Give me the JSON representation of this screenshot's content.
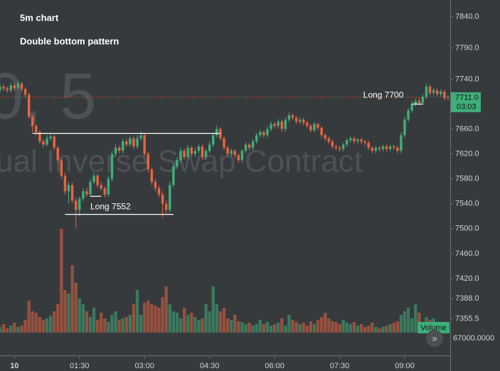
{
  "chart_data": {
    "type": "candlestick",
    "title": "5m chart",
    "subtitle": "Double bottom pattern",
    "watermark": [
      "0, 5",
      "ual Inverse Swap Contract"
    ],
    "x": [
      -20,
      -15,
      -10,
      -5,
      0,
      5,
      10,
      15,
      20,
      25,
      30,
      35,
      40,
      45,
      50,
      55,
      60,
      65,
      70,
      75,
      80,
      85,
      90,
      95,
      100,
      105,
      110,
      115,
      120,
      125,
      130,
      135,
      140,
      145,
      150,
      155,
      160,
      165,
      170,
      175,
      180,
      185,
      190,
      195,
      200,
      205,
      210,
      215,
      220,
      225,
      230,
      235,
      240,
      245,
      250,
      255,
      260,
      265,
      270,
      275,
      280,
      285,
      290,
      295,
      300,
      305,
      310,
      315,
      320,
      325,
      330,
      335,
      340,
      345,
      350,
      355,
      360,
      365,
      370,
      375,
      380,
      385,
      390,
      395,
      400,
      405,
      410,
      415,
      420,
      425,
      430,
      435,
      440,
      445,
      450,
      455,
      460,
      465,
      470,
      475,
      480,
      485,
      490,
      495,
      500,
      505,
      510,
      515,
      520,
      525,
      530,
      535,
      540,
      545,
      550,
      555,
      560,
      565,
      570,
      575,
      580,
      585,
      590,
      595,
      600
    ],
    "open": [
      7722,
      7728,
      7725,
      7722,
      7730,
      7726,
      7733,
      7724,
      7715,
      7680,
      7665,
      7655,
      7640,
      7635,
      7645,
      7648,
      7630,
      7610,
      7585,
      7560,
      7570,
      7545,
      7530,
      7548,
      7560,
      7555,
      7575,
      7585,
      7570,
      7565,
      7555,
      7580,
      7620,
      7630,
      7625,
      7640,
      7635,
      7645,
      7632,
      7645,
      7650,
      7620,
      7595,
      7575,
      7565,
      7555,
      7540,
      7530,
      7570,
      7600,
      7610,
      7625,
      7615,
      7630,
      7620,
      7625,
      7632,
      7615,
      7625,
      7635,
      7650,
      7660,
      7645,
      7630,
      7620,
      7625,
      7618,
      7610,
      7625,
      7635,
      7630,
      7640,
      7650,
      7655,
      7650,
      7660,
      7668,
      7665,
      7672,
      7660,
      7675,
      7682,
      7678,
      7672,
      7675,
      7670,
      7665,
      7658,
      7668,
      7662,
      7650,
      7645,
      7640,
      7632,
      7630,
      7628,
      7635,
      7642,
      7645,
      7640,
      7643,
      7640,
      7638,
      7630,
      7625,
      7630,
      7628,
      7632,
      7628,
      7632,
      7630,
      7625,
      7650,
      7675,
      7690,
      7700,
      7705,
      7702,
      7712,
      7728,
      7718,
      7722,
      7716,
      7720,
      7710
    ],
    "high": [
      7733,
      7732,
      7729,
      7735,
      7733,
      7738,
      7736,
      7727,
      7718,
      7683,
      7668,
      7658,
      7644,
      7650,
      7652,
      7651,
      7633,
      7614,
      7590,
      7575,
      7574,
      7550,
      7552,
      7565,
      7566,
      7580,
      7590,
      7588,
      7575,
      7568,
      7585,
      7625,
      7636,
      7634,
      7645,
      7644,
      7650,
      7648,
      7650,
      7656,
      7653,
      7624,
      7598,
      7580,
      7570,
      7560,
      7545,
      7575,
      7605,
      7615,
      7630,
      7629,
      7634,
      7633,
      7630,
      7636,
      7635,
      7629,
      7640,
      7654,
      7666,
      7663,
      7648,
      7633,
      7629,
      7628,
      7621,
      7628,
      7639,
      7638,
      7644,
      7654,
      7659,
      7658,
      7664,
      7672,
      7671,
      7676,
      7675,
      7679,
      7687,
      7685,
      7681,
      7679,
      7678,
      7673,
      7668,
      7671,
      7670,
      7665,
      7653,
      7648,
      7643,
      7635,
      7633,
      7638,
      7645,
      7648,
      7648,
      7646,
      7646,
      7643,
      7641,
      7633,
      7633,
      7633,
      7635,
      7635,
      7635,
      7635,
      7633,
      7655,
      7680,
      7694,
      7705,
      7709,
      7710,
      7716,
      7733,
      7731,
      7726,
      7725,
      7724,
      7723,
      7714
    ],
    "low": [
      7718,
      7721,
      7718,
      7719,
      7722,
      7723,
      7720,
      7711,
      7676,
      7655,
      7650,
      7636,
      7630,
      7632,
      7641,
      7626,
      7606,
      7580,
      7555,
      7540,
      7541,
      7500,
      7520,
      7544,
      7551,
      7551,
      7571,
      7566,
      7561,
      7550,
      7551,
      7576,
      7616,
      7621,
      7621,
      7631,
      7631,
      7628,
      7628,
      7641,
      7616,
      7590,
      7570,
      7560,
      7550,
      7518,
      7525,
      7526,
      7566,
      7596,
      7606,
      7611,
      7611,
      7616,
      7616,
      7621,
      7611,
      7611,
      7621,
      7631,
      7646,
      7641,
      7626,
      7616,
      7616,
      7614,
      7606,
      7606,
      7621,
      7626,
      7626,
      7636,
      7646,
      7646,
      7646,
      7656,
      7661,
      7661,
      7656,
      7656,
      7671,
      7674,
      7668,
      7668,
      7666,
      7661,
      7654,
      7654,
      7658,
      7646,
      7641,
      7636,
      7628,
      7626,
      7624,
      7624,
      7631,
      7638,
      7636,
      7636,
      7636,
      7634,
      7626,
      7621,
      7621,
      7624,
      7624,
      7624,
      7624,
      7626,
      7621,
      7621,
      7646,
      7671,
      7686,
      7696,
      7698,
      7698,
      7708,
      7714,
      7714,
      7712,
      7712,
      7706,
      7706
    ],
    "close": [
      7728,
      7725,
      7722,
      7730,
      7726,
      7733,
      7724,
      7715,
      7680,
      7665,
      7655,
      7640,
      7635,
      7645,
      7648,
      7630,
      7610,
      7585,
      7560,
      7570,
      7545,
      7530,
      7548,
      7560,
      7555,
      7575,
      7585,
      7570,
      7565,
      7555,
      7580,
      7620,
      7630,
      7625,
      7640,
      7635,
      7645,
      7632,
      7645,
      7650,
      7620,
      7595,
      7575,
      7565,
      7555,
      7540,
      7530,
      7570,
      7600,
      7610,
      7625,
      7615,
      7630,
      7620,
      7625,
      7632,
      7615,
      7625,
      7635,
      7650,
      7660,
      7645,
      7630,
      7620,
      7625,
      7618,
      7610,
      7625,
      7635,
      7630,
      7640,
      7650,
      7655,
      7650,
      7660,
      7668,
      7665,
      7672,
      7660,
      7675,
      7682,
      7678,
      7672,
      7675,
      7670,
      7665,
      7658,
      7668,
      7662,
      7650,
      7645,
      7640,
      7632,
      7630,
      7628,
      7635,
      7642,
      7645,
      7640,
      7643,
      7640,
      7638,
      7630,
      7625,
      7630,
      7628,
      7632,
      7628,
      7632,
      7630,
      7625,
      7650,
      7675,
      7690,
      7700,
      7705,
      7702,
      7712,
      7728,
      7718,
      7722,
      7716,
      7720,
      7710,
      7711
    ],
    "volume": [
      8,
      12,
      6,
      10,
      14,
      8,
      10,
      18,
      45,
      30,
      28,
      22,
      18,
      20,
      24,
      30,
      40,
      146,
      60,
      55,
      95,
      70,
      48,
      40,
      30,
      22,
      35,
      18,
      28,
      20,
      15,
      25,
      30,
      18,
      20,
      22,
      25,
      40,
      60,
      25,
      42,
      45,
      40,
      38,
      35,
      50,
      65,
      40,
      30,
      28,
      20,
      35,
      25,
      28,
      22,
      18,
      20,
      40,
      30,
      65,
      40,
      30,
      35,
      20,
      18,
      25,
      16,
      15,
      12,
      14,
      10,
      12,
      18,
      12,
      15,
      10,
      12,
      14,
      20,
      10,
      25,
      18,
      15,
      12,
      14,
      10,
      16,
      12,
      18,
      22,
      28,
      20,
      16,
      15,
      12,
      18,
      14,
      12,
      15,
      10,
      12,
      8,
      10,
      14,
      8,
      6,
      8,
      10,
      12,
      14,
      16,
      25,
      30,
      35,
      20,
      40,
      28,
      15,
      22,
      18,
      20,
      12,
      10,
      14,
      8
    ],
    "up_color": "#3fae7a",
    "down_color": "#e8643f",
    "xlim": [
      -20,
      603
    ],
    "xticks": [
      {
        "value": 0,
        "label": "10"
      },
      {
        "value": 90,
        "label": "01:30"
      },
      {
        "value": 180,
        "label": "03:00"
      },
      {
        "value": 270,
        "label": "04:30"
      },
      {
        "value": 360,
        "label": "06:00"
      },
      {
        "value": 450,
        "label": "07:30"
      },
      {
        "value": 540,
        "label": "09:00"
      }
    ],
    "ylim": [
      7331,
      7867
    ],
    "yticks": [
      {
        "value": 7840,
        "label": "7840.0"
      },
      {
        "value": 7790,
        "label": "7790.0"
      },
      {
        "value": 7740,
        "label": "7740.0"
      },
      {
        "value": 7660,
        "label": "7660.0"
      },
      {
        "value": 7620,
        "label": "7620.0"
      },
      {
        "value": 7580,
        "label": "7580.0"
      },
      {
        "value": 7540,
        "label": "7540.0"
      },
      {
        "value": 7500,
        "label": "7500.0"
      },
      {
        "value": 7460,
        "label": "7460.0"
      },
      {
        "value": 7420,
        "label": "7420.0"
      },
      {
        "value": 7388,
        "label": "7388.0"
      },
      {
        "value": 7355.5,
        "label": "7355.5"
      }
    ],
    "volume_ylim": [
      0,
      150
    ],
    "volume_label": "Volume",
    "volume_axis_label": "67000.0000",
    "last_price": {
      "value": 7711,
      "label": "7711.0"
    },
    "countdown": "03:03",
    "annotations": [
      {
        "price": 7653,
        "x": [
          25,
          285
        ]
      },
      {
        "price": 7523,
        "x": [
          70,
          220
        ]
      },
      {
        "price": 7552,
        "x": [
          105,
          120
        ],
        "label": "Long 7552"
      },
      {
        "price": 7700,
        "x": [
          550,
          565
        ],
        "label": "Long 7700"
      }
    ]
  }
}
